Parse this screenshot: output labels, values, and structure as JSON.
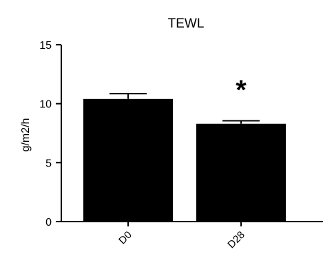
{
  "chart_data": {
    "type": "bar",
    "title": "TEWL",
    "xlabel": "",
    "ylabel": "g/m2/h",
    "categories": [
      "D0",
      "D28"
    ],
    "values": [
      10.4,
      8.3
    ],
    "errors": [
      0.45,
      0.25
    ],
    "ylim": [
      0,
      15
    ],
    "yticks": [
      0,
      5,
      10,
      15
    ],
    "ytick_labels": [
      "0",
      "5",
      "10",
      "15"
    ],
    "annotations": [
      {
        "category": "D28",
        "text": "*"
      }
    ],
    "grid": false,
    "legend": "none",
    "bar_color": "#000000"
  }
}
